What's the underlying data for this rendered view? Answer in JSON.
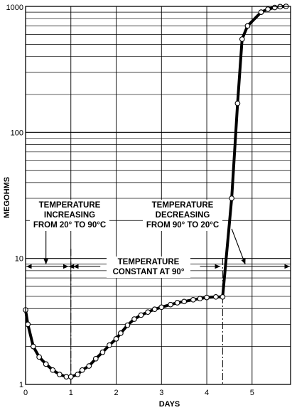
{
  "chart_data": {
    "type": "line",
    "title": "",
    "xlabel": "DAYS",
    "ylabel": "MEGOHMS",
    "xlim": [
      0,
      5.85
    ],
    "ylim": [
      1,
      1000
    ],
    "y_scale": "log",
    "grid": true,
    "x_ticks": [
      "0",
      "1",
      "2",
      "3",
      "4",
      "5"
    ],
    "y_ticks": [
      "1",
      "10",
      "100",
      "1000"
    ],
    "series": [
      {
        "values_x": [
          0,
          0.05,
          0.17,
          0.3,
          0.45,
          0.6,
          0.75,
          0.9,
          1.0,
          1.15,
          1.25,
          1.4,
          1.55,
          1.7,
          1.85,
          2.0,
          2.1,
          2.25,
          2.4,
          2.55,
          2.7,
          2.85,
          3.0,
          3.2,
          3.35,
          3.5,
          3.7,
          3.85,
          4.0,
          4.2,
          4.35,
          4.55,
          4.68,
          4.78,
          4.9,
          5.2,
          5.35,
          5.5,
          5.62,
          5.75
        ],
        "values_y": [
          3.9,
          3.0,
          2.0,
          1.65,
          1.45,
          1.3,
          1.2,
          1.15,
          1.15,
          1.2,
          1.3,
          1.4,
          1.6,
          1.8,
          2.05,
          2.3,
          2.55,
          2.95,
          3.3,
          3.55,
          3.75,
          3.95,
          4.1,
          4.3,
          4.45,
          4.55,
          4.7,
          4.8,
          4.9,
          4.95,
          4.95,
          30,
          170,
          550,
          700,
          900,
          950,
          980,
          995,
          1000
        ]
      }
    ],
    "annotations": [
      {
        "lines": [
          "TEMPERATURE",
          "INCREASING",
          "FROM 20° TO 90°C"
        ]
      },
      {
        "lines": [
          "TEMPERATURE",
          "DECREASING",
          "FROM 90° TO 20°C"
        ]
      },
      {
        "lines": [
          "TEMPERATURE",
          "CONSTANT AT 90°"
        ]
      }
    ],
    "reference_x": [
      1.0,
      4.35
    ],
    "legend": "none"
  }
}
